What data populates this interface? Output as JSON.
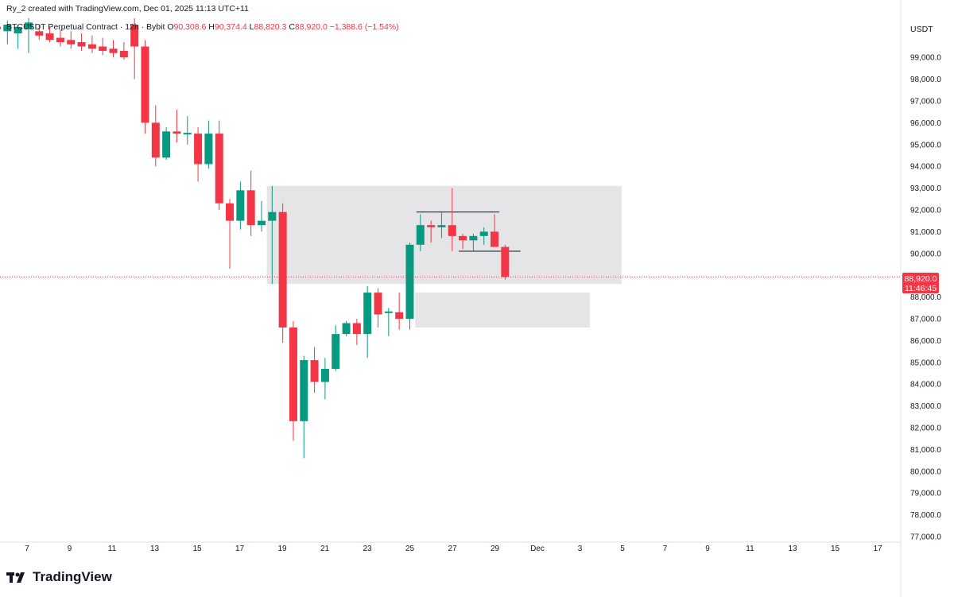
{
  "header": {
    "created_by": "Ry_2 created with TradingView.com, Dec 01, 2025 11:13 UTC+11",
    "symbol": "BTCUSDT Perpetual Contract · 12h · Bybit",
    "open_label": "O",
    "open": "90,308.6",
    "high_label": "H",
    "high": "90,374.4",
    "low_label": "L",
    "low": "88,820.3",
    "close_label": "C",
    "close": "88,920.0",
    "change": "−1,388.6 (−1.54%)"
  },
  "currency_label": "USDT",
  "price_tag": {
    "price": "88,920.0",
    "countdown": "11:46:45"
  },
  "brand": {
    "name": "TradingView"
  },
  "colors": {
    "up": "#089981",
    "down": "#f23645",
    "zone": "#e0e0e3",
    "axis_text": "#131722",
    "border": "#e0e3eb"
  },
  "chart_data": {
    "type": "candlestick",
    "timeframe": "12h",
    "currency": "USDT",
    "y_ticks": [
      77000,
      78000,
      79000,
      80000,
      81000,
      82000,
      83000,
      84000,
      85000,
      86000,
      87000,
      88000,
      89000,
      90000,
      91000,
      92000,
      93000,
      94000,
      95000,
      96000,
      97000,
      98000,
      99000
    ],
    "y_tick_labels": [
      "77,000.0",
      "78,000.0",
      "79,000.0",
      "80,000.0",
      "81,000.0",
      "82,000.0",
      "83,000.0",
      "84,000.0",
      "85,000.0",
      "86,000.0",
      "87,000.0",
      "88,000.0",
      "89,000.0",
      "90,000.0",
      "91,000.0",
      "92,000.0",
      "93,000.0",
      "94,000.0",
      "95,000.0",
      "96,000.0",
      "97,000.0",
      "98,000.0",
      "99,000.0"
    ],
    "x_labels": [
      "7",
      "9",
      "11",
      "13",
      "15",
      "17",
      "19",
      "21",
      "23",
      "25",
      "27",
      "29",
      "Dec",
      "3",
      "5",
      "7",
      "9",
      "11",
      "13",
      "15",
      "17"
    ],
    "candles": [
      {
        "o": 100400,
        "h": 100600,
        "l": 99900,
        "c": 100300
      },
      {
        "o": 100200,
        "h": 100700,
        "l": 99600,
        "c": 100500
      },
      {
        "o": 100100,
        "h": 100500,
        "l": 99400,
        "c": 100400
      },
      {
        "o": 100300,
        "h": 100800,
        "l": 99200,
        "c": 100600
      },
      {
        "o": 100200,
        "h": 100500,
        "l": 99800,
        "c": 100000
      },
      {
        "o": 100100,
        "h": 100400,
        "l": 99700,
        "c": 99800
      },
      {
        "o": 99900,
        "h": 100300,
        "l": 99500,
        "c": 99700
      },
      {
        "o": 99800,
        "h": 100200,
        "l": 99400,
        "c": 99600
      },
      {
        "o": 99700,
        "h": 100100,
        "l": 99300,
        "c": 99500
      },
      {
        "o": 99600,
        "h": 100000,
        "l": 99200,
        "c": 99400
      },
      {
        "o": 99500,
        "h": 99900,
        "l": 99100,
        "c": 99300
      },
      {
        "o": 99400,
        "h": 99800,
        "l": 99000,
        "c": 99200
      },
      {
        "o": 99300,
        "h": 99700,
        "l": 98900,
        "c": 99000
      },
      {
        "o": 100500,
        "h": 100800,
        "l": 98000,
        "c": 99500
      },
      {
        "o": 99500,
        "h": 99800,
        "l": 95500,
        "c": 96000
      },
      {
        "o": 96000,
        "h": 96800,
        "l": 94000,
        "c": 94400
      },
      {
        "o": 94400,
        "h": 95800,
        "l": 94300,
        "c": 95600
      },
      {
        "o": 95600,
        "h": 96600,
        "l": 95100,
        "c": 95500
      },
      {
        "o": 95500,
        "h": 96300,
        "l": 95000,
        "c": 95500
      },
      {
        "o": 95500,
        "h": 95800,
        "l": 93300,
        "c": 94100
      },
      {
        "o": 94100,
        "h": 96100,
        "l": 93900,
        "c": 95500
      },
      {
        "o": 95500,
        "h": 96100,
        "l": 92000,
        "c": 92300
      },
      {
        "o": 92300,
        "h": 92500,
        "l": 89300,
        "c": 91500
      },
      {
        "o": 91500,
        "h": 93300,
        "l": 91100,
        "c": 92900
      },
      {
        "o": 92900,
        "h": 93800,
        "l": 90800,
        "c": 91300
      },
      {
        "o": 91300,
        "h": 92400,
        "l": 91000,
        "c": 91500
      },
      {
        "o": 91500,
        "h": 93100,
        "l": 88600,
        "c": 91900
      },
      {
        "o": 91900,
        "h": 92300,
        "l": 85900,
        "c": 86600
      },
      {
        "o": 86600,
        "h": 86900,
        "l": 81400,
        "c": 82300
      },
      {
        "o": 82300,
        "h": 85300,
        "l": 80600,
        "c": 85100
      },
      {
        "o": 85100,
        "h": 85700,
        "l": 83600,
        "c": 84100
      },
      {
        "o": 84100,
        "h": 85200,
        "l": 83300,
        "c": 84700
      },
      {
        "o": 84700,
        "h": 86700,
        "l": 84600,
        "c": 86300
      },
      {
        "o": 86300,
        "h": 86900,
        "l": 86200,
        "c": 86800
      },
      {
        "o": 86800,
        "h": 87000,
        "l": 85800,
        "c": 86300
      },
      {
        "o": 86300,
        "h": 88500,
        "l": 85200,
        "c": 88200
      },
      {
        "o": 88200,
        "h": 88400,
        "l": 86600,
        "c": 87200
      },
      {
        "o": 87300,
        "h": 87500,
        "l": 86200,
        "c": 87300
      },
      {
        "o": 87300,
        "h": 88200,
        "l": 86500,
        "c": 87000
      },
      {
        "o": 87000,
        "h": 90500,
        "l": 86500,
        "c": 90400
      },
      {
        "o": 90400,
        "h": 91800,
        "l": 90100,
        "c": 91300
      },
      {
        "o": 91300,
        "h": 91500,
        "l": 90500,
        "c": 91200
      },
      {
        "o": 91200,
        "h": 91900,
        "l": 90700,
        "c": 91300
      },
      {
        "o": 91300,
        "h": 93000,
        "l": 90100,
        "c": 90800
      },
      {
        "o": 90800,
        "h": 90900,
        "l": 90200,
        "c": 90600
      },
      {
        "o": 90600,
        "h": 90900,
        "l": 90100,
        "c": 90800
      },
      {
        "o": 90800,
        "h": 91200,
        "l": 90400,
        "c": 91000
      },
      {
        "o": 91000,
        "h": 91800,
        "l": 90300,
        "c": 90300
      },
      {
        "o": 90300,
        "h": 90400,
        "l": 88800,
        "c": 88920
      }
    ],
    "zones": [
      {
        "y_from": 88600,
        "y_to": 93100,
        "x_from_candle": 26,
        "x_to_candle": 59
      },
      {
        "y_from": 86600,
        "y_to": 88200,
        "x_from_candle": 40,
        "x_to_candle": 56
      }
    ],
    "lines": [
      {
        "y": 91900,
        "from_candle": 40,
        "to_candle": 47
      },
      {
        "y": 90100,
        "from_candle": 44,
        "to_candle": 49
      }
    ],
    "last_price": 88920,
    "grid": false,
    "legend": "none"
  }
}
